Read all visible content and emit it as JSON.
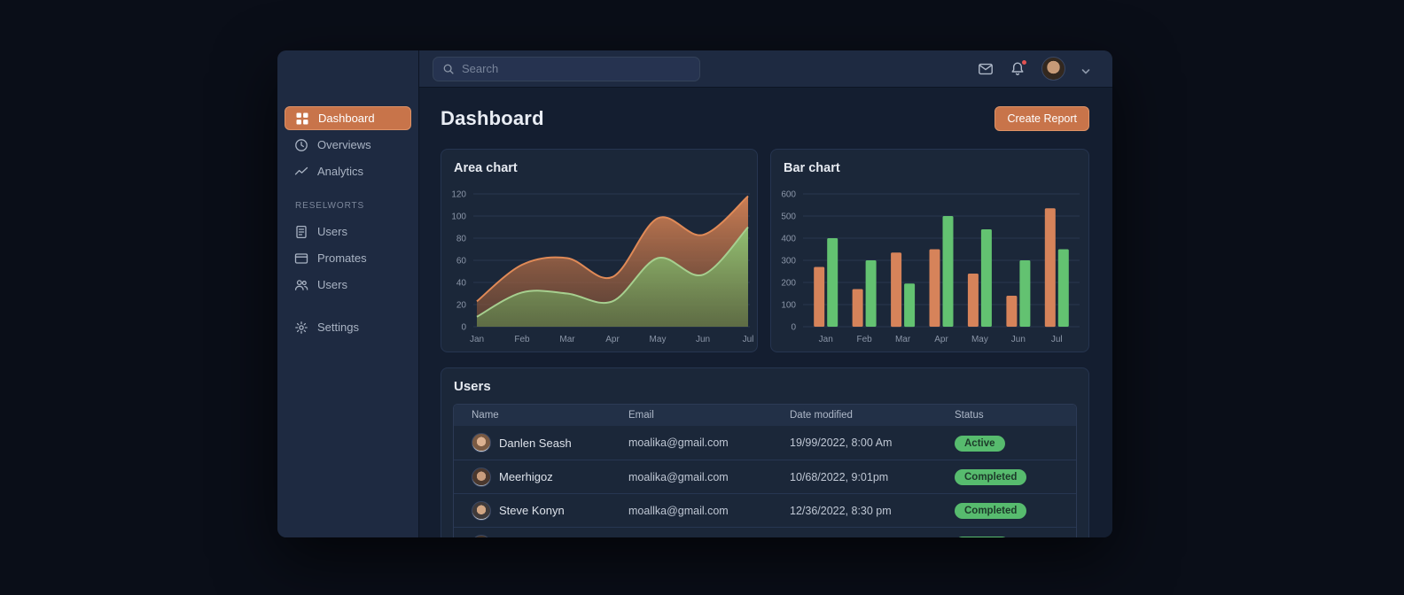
{
  "colors": {
    "accent_orange": "#c8744a",
    "bar_orange": "#d6835a",
    "bar_green": "#63c271",
    "area_orange_stroke": "#e08a57",
    "area_green_stroke": "#a6cf8f",
    "badge_green": "#57bb6e",
    "notification_red": "#e05252",
    "grid_line": "#2a3750",
    "tick_text": "#8b96a8"
  },
  "topbar": {
    "search_placeholder": "Search",
    "has_notification": true
  },
  "sidebar": {
    "primary": [
      {
        "label": "Dashboard",
        "icon": "dashboard-icon",
        "active": true
      },
      {
        "label": "Overviews",
        "icon": "clock-icon",
        "active": false
      },
      {
        "label": "Analytics",
        "icon": "trend-icon",
        "active": false
      }
    ],
    "section_label": "RESELWORTS",
    "secondary": [
      {
        "label": "Users",
        "icon": "file-icon",
        "active": false
      },
      {
        "label": "Promates",
        "icon": "card-icon",
        "active": false
      },
      {
        "label": "Users",
        "icon": "people-icon",
        "active": false
      }
    ],
    "footer": [
      {
        "label": "Settings",
        "icon": "gear-icon",
        "active": false
      }
    ]
  },
  "page_header": {
    "title": "Dashboard",
    "create_report_label": "Create Report"
  },
  "chart_data": [
    {
      "type": "area",
      "title": "Area chart",
      "categories": [
        "Jan",
        "Feb",
        "Mar",
        "Apr",
        "May",
        "Jun",
        "Jul"
      ],
      "series": [
        {
          "name": "orange",
          "color_fill_top": "rgba(214,131,86,0.95)",
          "color_fill_bottom": "rgba(125,78,52,0.60)",
          "color_stroke": "#e08a57",
          "values": [
            23,
            56,
            62,
            45,
            98,
            83,
            118
          ]
        },
        {
          "name": "green",
          "color_fill_top": "rgba(143,196,116,0.95)",
          "color_fill_bottom": "rgba(98,132,76,0.65)",
          "color_stroke": "#a6cf8f",
          "values": [
            9,
            31,
            30,
            23,
            62,
            47,
            90
          ]
        }
      ],
      "ylim": [
        0,
        120
      ],
      "yticks": [
        0,
        20,
        40,
        60,
        80,
        100,
        120
      ],
      "grid": true,
      "legend": "none"
    },
    {
      "type": "bar",
      "title": "Bar chart",
      "categories": [
        "Jan",
        "Feb",
        "Mar",
        "Apr",
        "May",
        "Jun",
        "Jul"
      ],
      "series": [
        {
          "name": "orange",
          "color": "#d6835a",
          "values": [
            270,
            170,
            335,
            350,
            240,
            140,
            535
          ]
        },
        {
          "name": "green",
          "color": "#63c271",
          "values": [
            400,
            300,
            195,
            500,
            440,
            300,
            350
          ]
        }
      ],
      "ylim": [
        0,
        600
      ],
      "yticks": [
        0,
        100,
        200,
        300,
        400,
        500,
        600
      ],
      "grid": true,
      "legend": "none"
    }
  ],
  "users_table": {
    "title": "Users",
    "columns": [
      "Name",
      "Email",
      "Date modified",
      "Status"
    ],
    "rows": [
      {
        "name": "Danlen Seash",
        "email": "moalika@gmail.com",
        "date_modified": "19/99/2022, 8:00 Am",
        "status": "Active",
        "avatar": "avatar-1",
        "partial": false
      },
      {
        "name": "Meerhigoz",
        "email": "moalika@gmail.com",
        "date_modified": "10/68/2022, 9:01pm",
        "status": "Completed",
        "avatar": "avatar-2",
        "partial": false
      },
      {
        "name": "Steve Konyn",
        "email": "moallka@gmail.com",
        "date_modified": "12/36/2022, 8:30 pm",
        "status": "Completed",
        "avatar": "avatar-3",
        "partial": false
      },
      {
        "name": "",
        "email": "",
        "date_modified": "",
        "status": "",
        "avatar": "avatar-4",
        "partial": true
      }
    ]
  }
}
